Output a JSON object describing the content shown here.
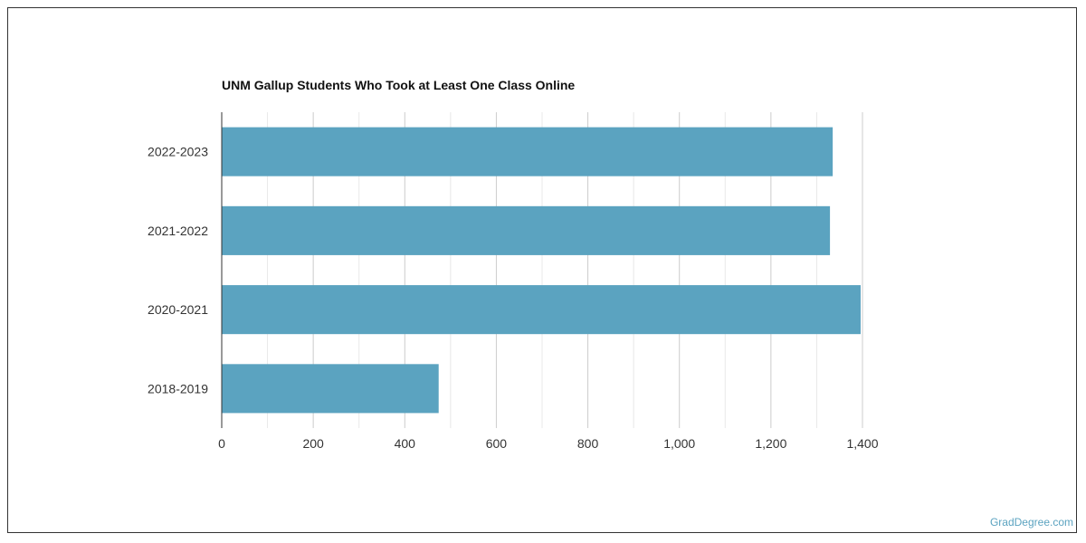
{
  "chart_data": {
    "type": "bar",
    "orientation": "horizontal",
    "title": "UNM Gallup Students Who Took at Least One Class Online",
    "categories": [
      "2022-2023",
      "2021-2022",
      "2020-2021",
      "2018-2019"
    ],
    "values": [
      1335,
      1329,
      1396,
      474
    ],
    "xlim": [
      0,
      1400
    ],
    "xticks": [
      0,
      200,
      400,
      600,
      800,
      1000,
      1200,
      1400
    ],
    "xtick_labels": [
      "0",
      "200",
      "400",
      "600",
      "800",
      "1,000",
      "1,200",
      "1,400"
    ],
    "xlabel": "",
    "ylabel": "",
    "grid": true,
    "legend": "none",
    "bar_color": "#5ba3c0"
  },
  "watermark": "GradDegree.com"
}
